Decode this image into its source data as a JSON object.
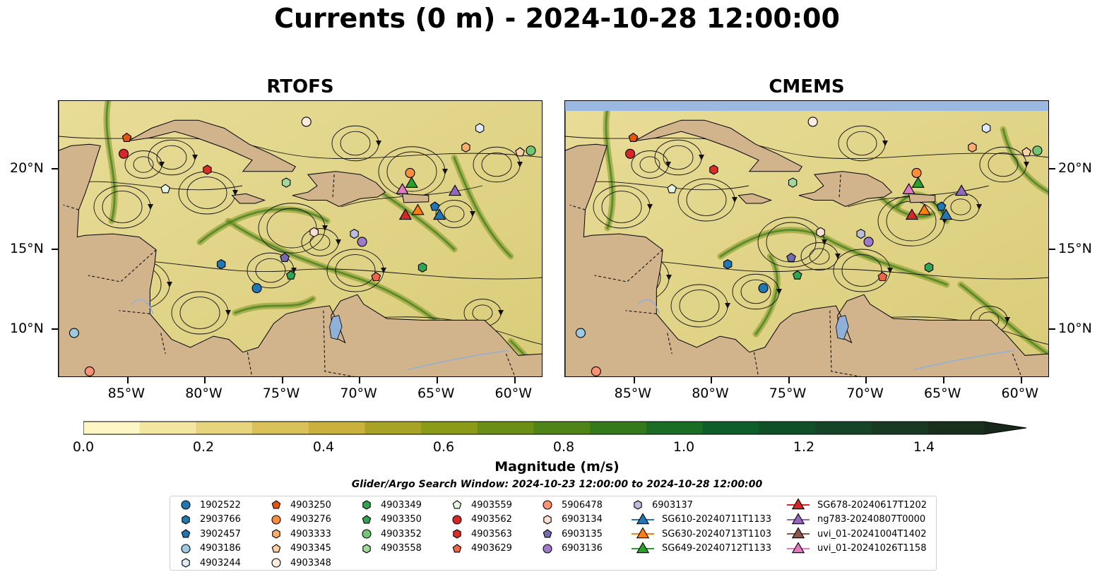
{
  "title": "Currents (0 m) - 2024-10-28 12:00:00",
  "panels": [
    {
      "name": "RTOFS"
    },
    {
      "name": "CMEMS"
    }
  ],
  "axes": {
    "lon_ticks": [
      "85°W",
      "80°W",
      "75°W",
      "70°W",
      "65°W",
      "60°W"
    ],
    "lat_ticks": [
      "20°N",
      "15°N",
      "10°N"
    ],
    "lon_range": [
      -89.5,
      -58.2
    ],
    "lat_range": [
      7.0,
      24.3
    ]
  },
  "colorbar": {
    "label": "Magnitude (m/s)",
    "ticks": [
      "0.0",
      "0.2",
      "0.4",
      "0.6",
      "0.8",
      "1.0",
      "1.2",
      "1.4"
    ],
    "range": [
      0,
      1.5
    ],
    "colors": [
      "#fdf7c3",
      "#f3e6a0",
      "#e7d47c",
      "#d9c25a",
      "#c8b13c",
      "#a9a325",
      "#8c9b17",
      "#6b8f14",
      "#4f8418",
      "#347a1c",
      "#1b6c25",
      "#0f5e29",
      "#0f5028",
      "#164426",
      "#193a22",
      "#18301c"
    ]
  },
  "search_window": "Glider/Argo Search Window: 2024-10-23 12:00:00 to 2024-10-28 12:00:00",
  "legend": [
    {
      "label": "1902522",
      "marker": "circle",
      "color": "#1f77b4"
    },
    {
      "label": "2903766",
      "marker": "hexagon",
      "color": "#1f77b4"
    },
    {
      "label": "3902457",
      "marker": "pentagon",
      "color": "#1f77b4"
    },
    {
      "label": "4903186",
      "marker": "circle",
      "color": "#9ecae1"
    },
    {
      "label": "4903244",
      "marker": "hexagon",
      "color": "#deebf7"
    },
    {
      "label": "4903250",
      "marker": "pentagon",
      "color": "#e6550d"
    },
    {
      "label": "4903276",
      "marker": "circle",
      "color": "#fd8d3c"
    },
    {
      "label": "4903333",
      "marker": "hexagon",
      "color": "#fdae6b"
    },
    {
      "label": "4903345",
      "marker": "pentagon",
      "color": "#fdd0a2"
    },
    {
      "label": "4903348",
      "marker": "circle",
      "color": "#feedde"
    },
    {
      "label": "4903349",
      "marker": "hexagon",
      "color": "#31a354"
    },
    {
      "label": "4903350",
      "marker": "pentagon",
      "color": "#31a354"
    },
    {
      "label": "4903352",
      "marker": "circle",
      "color": "#74c476"
    },
    {
      "label": "4903558",
      "marker": "hexagon",
      "color": "#a1d99b"
    },
    {
      "label": "4903559",
      "marker": "pentagon",
      "color": "#e5f5e0"
    },
    {
      "label": "4903562",
      "marker": "circle",
      "color": "#d62728"
    },
    {
      "label": "4903563",
      "marker": "hexagon",
      "color": "#de2d26"
    },
    {
      "label": "4903629",
      "marker": "pentagon",
      "color": "#ef6548"
    },
    {
      "label": "5906478",
      "marker": "circle",
      "color": "#fc9272"
    },
    {
      "label": "6903134",
      "marker": "hexagon",
      "color": "#fee0d2"
    },
    {
      "label": "6903135",
      "marker": "pentagon",
      "color": "#756bb1"
    },
    {
      "label": "6903136",
      "marker": "circle",
      "color": "#9e7bc9"
    },
    {
      "label": "6903137",
      "marker": "hexagon",
      "color": "#bcbddc"
    },
    {
      "label": "SG610-20240711T1133",
      "marker": "triangle",
      "color": "#1f77b4"
    },
    {
      "label": "SG630-20240713T1103",
      "marker": "triangle",
      "color": "#ff7f0e"
    },
    {
      "label": "SG649-20240712T1133",
      "marker": "triangle",
      "color": "#2ca02c"
    },
    {
      "label": "SG678-20240617T1202",
      "marker": "triangle",
      "color": "#d62728"
    },
    {
      "label": "ng783-20240807T0000",
      "marker": "triangle",
      "color": "#9467bd"
    },
    {
      "label": "uvi_01-20241004T1402",
      "marker": "triangle",
      "color": "#8c564b"
    },
    {
      "label": "uvi_01-20241026T1158",
      "marker": "triangle",
      "color": "#e377c2"
    }
  ],
  "floats": [
    {
      "id": "1902522",
      "lon": -76.7,
      "lat": 12.6
    },
    {
      "id": "2903766",
      "lon": -79.0,
      "lat": 14.1
    },
    {
      "id": "3902457",
      "lon": -65.2,
      "lat": 17.7
    },
    {
      "id": "4903186",
      "lon": -88.5,
      "lat": 9.8
    },
    {
      "id": "4903244",
      "lon": -62.3,
      "lat": 22.6
    },
    {
      "id": "4903250",
      "lon": -85.1,
      "lat": 22.0
    },
    {
      "id": "4903276",
      "lon": -66.8,
      "lat": 19.8
    },
    {
      "id": "4903333",
      "lon": -63.2,
      "lat": 21.4
    },
    {
      "id": "4903345",
      "lon": -59.7,
      "lat": 21.1
    },
    {
      "id": "4903348",
      "lon": -73.5,
      "lat": 23.0
    },
    {
      "id": "4903349",
      "lon": -66.0,
      "lat": 13.9
    },
    {
      "id": "4903350",
      "lon": -74.5,
      "lat": 13.4
    },
    {
      "id": "4903352",
      "lon": -59.0,
      "lat": 21.2
    },
    {
      "id": "4903558",
      "lon": -74.8,
      "lat": 19.2
    },
    {
      "id": "4903559",
      "lon": -82.6,
      "lat": 18.8
    },
    {
      "id": "4903562",
      "lon": -85.3,
      "lat": 21.0
    },
    {
      "id": "4903563",
      "lon": -79.9,
      "lat": 20.0
    },
    {
      "id": "4903629",
      "lon": -69.0,
      "lat": 13.3
    },
    {
      "id": "5906478",
      "lon": -87.5,
      "lat": 7.4
    },
    {
      "id": "6903134",
      "lon": -73.0,
      "lat": 16.1
    },
    {
      "id": "6903135",
      "lon": -74.9,
      "lat": 14.5
    },
    {
      "id": "6903136",
      "lon": -69.9,
      "lat": 15.5
    },
    {
      "id": "6903137",
      "lon": -70.4,
      "lat": 16.0
    }
  ],
  "gliders": [
    {
      "id": "SG610-20240711T1133",
      "lon": -64.9,
      "lat": 17.2
    },
    {
      "id": "SG630-20240713T1103",
      "lon": -66.3,
      "lat": 17.5
    },
    {
      "id": "SG649-20240712T1133",
      "lon": -66.7,
      "lat": 19.2
    },
    {
      "id": "SG678-20240617T1202",
      "lon": -67.1,
      "lat": 17.2
    },
    {
      "id": "ng783-20240807T0000",
      "lon": -63.9,
      "lat": 18.7
    },
    {
      "id": "uvi_01-20241026T1158",
      "lon": -67.3,
      "lat": 18.8
    }
  ]
}
